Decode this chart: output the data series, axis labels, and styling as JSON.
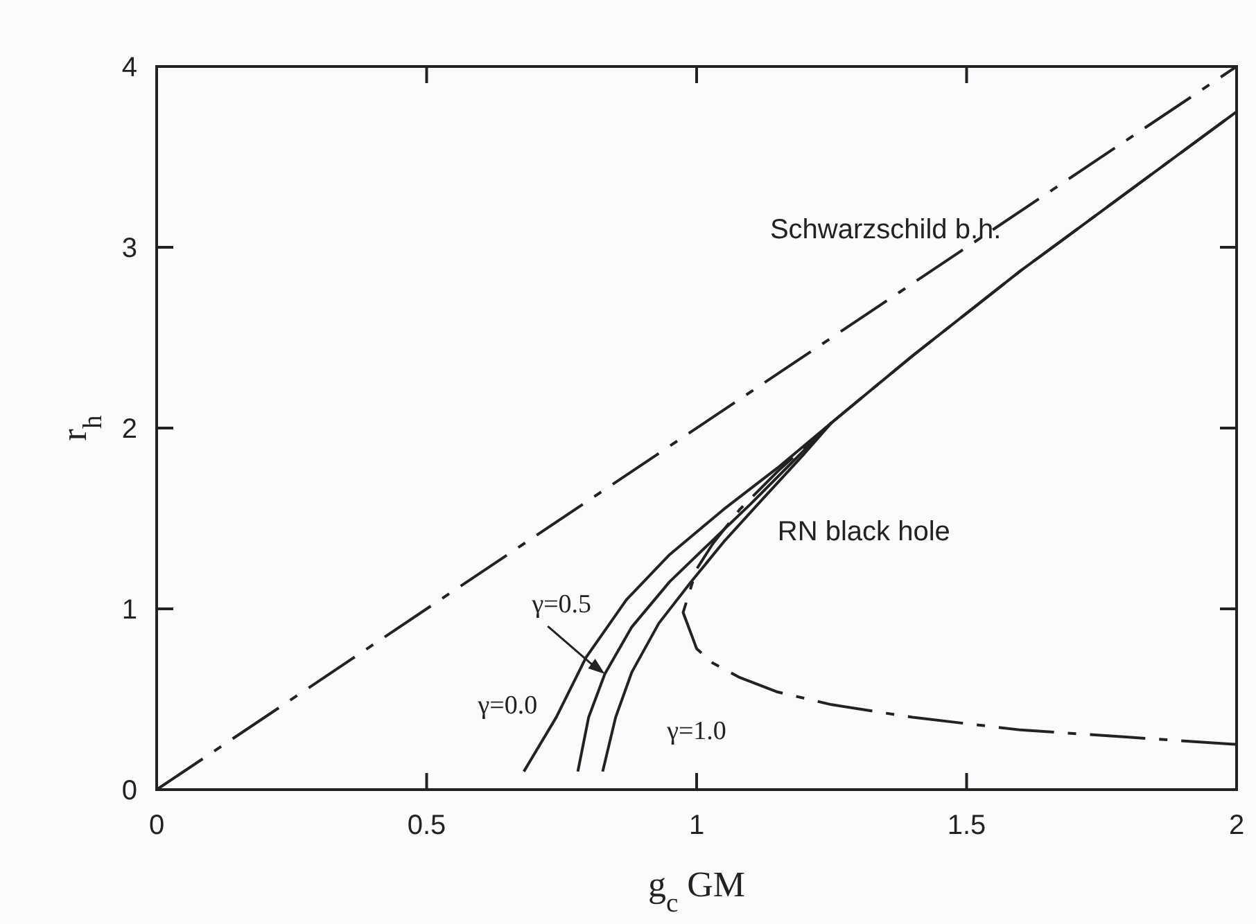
{
  "chart_data": {
    "type": "line",
    "xlabel": "g$_{c}$GM",
    "ylabel": "r$_{h}$",
    "xlim": [
      0,
      2
    ],
    "ylim": [
      0,
      4
    ],
    "xticks": [
      0,
      0.5,
      1,
      1.5,
      2
    ],
    "yticks": [
      0,
      1,
      2,
      3,
      4
    ],
    "grid": false,
    "annotations": [
      "RN black hole"
    ],
    "series": [
      {
        "name": "Schwarzschild b.h.",
        "color": "#222222",
        "line_style": "dashed",
        "x": [
          0,
          2
        ],
        "values": [
          0,
          4
        ]
      },
      {
        "color": "#222222",
        "line_style": "dashed",
        "x": [
          2,
          1.8,
          1.6,
          1.4,
          1.25,
          1.15,
          1.08,
          1.03,
          1.0,
          0.975,
          1.0,
          1.03,
          1.08,
          1.15,
          1.25,
          1.4,
          1.6,
          1.8,
          2
        ],
        "values": [
          0.25,
          0.29,
          0.33,
          0.4,
          0.47,
          0.54,
          0.62,
          0.7,
          0.78,
          0.98,
          1.22,
          1.36,
          1.55,
          1.76,
          2.03,
          2.4,
          2.87,
          3.31,
          3.75
        ]
      },
      {
        "name": "γ=0.0",
        "color": "#222222",
        "line_style": "solid",
        "x": [
          0.68,
          0.74,
          0.795,
          0.87,
          0.95,
          1.05,
          1.15,
          1.25,
          1.4,
          1.6,
          1.8,
          2
        ],
        "values": [
          0.1,
          0.4,
          0.73,
          1.05,
          1.3,
          1.55,
          1.78,
          2.03,
          2.4,
          2.87,
          3.31,
          3.75
        ]
      },
      {
        "name": "γ=0.5",
        "color": "#222222",
        "line_style": "solid",
        "x": [
          0.78,
          0.8,
          0.83,
          0.88,
          0.95,
          1.03,
          1.1,
          1.18,
          1.25
        ],
        "values": [
          0.1,
          0.4,
          0.64,
          0.9,
          1.15,
          1.38,
          1.58,
          1.82,
          2.03
        ]
      },
      {
        "name": "γ=1.0",
        "color": "#222222",
        "line_style": "solid",
        "x": [
          0.826,
          0.85,
          0.88,
          0.93,
          0.99,
          1.05,
          1.12,
          1.2,
          1.25
        ],
        "values": [
          0.1,
          0.4,
          0.65,
          0.92,
          1.15,
          1.37,
          1.6,
          1.86,
          2.03
        ]
      }
    ]
  }
}
